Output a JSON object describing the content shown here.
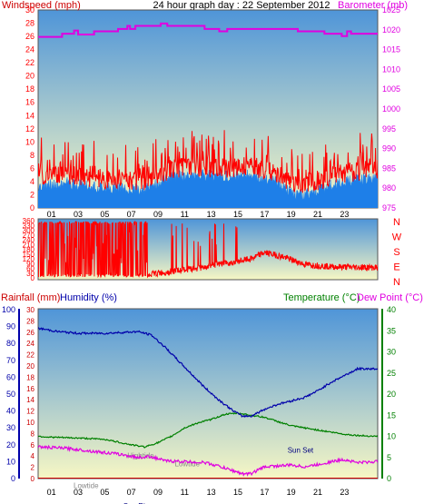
{
  "title": "24 hour graph day : 22 September 2012",
  "colors": {
    "wind": "#ff0000",
    "gust_fill": "#1e7fe8",
    "barometer": "#e000e0",
    "rain": "#cc0000",
    "humidity": "#0000aa",
    "temperature": "#008000",
    "dewpoint": "#e000e0",
    "sky_top": "#4f95d8",
    "sky_bottom": "#f7f7c4"
  },
  "chart_data": [
    {
      "type": "line",
      "name": "wind-barometer",
      "y_label_left": "Windspeed (mph)",
      "y_label_right": "Barometer (mb)",
      "x_ticks": [
        "01",
        "03",
        "05",
        "07",
        "09",
        "11",
        "13",
        "15",
        "17",
        "19",
        "21",
        "23"
      ],
      "ylim_left": [
        0,
        30
      ],
      "y_ticks_left": [
        0,
        2,
        4,
        6,
        8,
        10,
        12,
        14,
        16,
        18,
        20,
        22,
        24,
        26,
        28,
        30
      ],
      "ylim_right": [
        975,
        1025
      ],
      "y_ticks_right": [
        975,
        980,
        985,
        990,
        995,
        1000,
        1005,
        1010,
        1015,
        1020,
        1025
      ],
      "barometer_steps": [
        {
          "x": 0,
          "y": 1018.2
        },
        {
          "x": 1.8,
          "y": 1019.0
        },
        {
          "x": 2.7,
          "y": 1019.8
        },
        {
          "x": 3.0,
          "y": 1018.8
        },
        {
          "x": 4.2,
          "y": 1019.6
        },
        {
          "x": 6.0,
          "y": 1020.2
        },
        {
          "x": 6.7,
          "y": 1021.0
        },
        {
          "x": 6.9,
          "y": 1020.2
        },
        {
          "x": 7.3,
          "y": 1021.0
        },
        {
          "x": 9.2,
          "y": 1021.6
        },
        {
          "x": 9.7,
          "y": 1021.0
        },
        {
          "x": 12.5,
          "y": 1020.2
        },
        {
          "x": 13.6,
          "y": 1019.6
        },
        {
          "x": 14.2,
          "y": 1020.2
        },
        {
          "x": 19.5,
          "y": 1019.6
        },
        {
          "x": 21.5,
          "y": 1019.0
        },
        {
          "x": 22.8,
          "y": 1018.4
        },
        {
          "x": 23.2,
          "y": 1019.6
        },
        {
          "x": 23.5,
          "y": 1019.0
        },
        {
          "x": 25.5,
          "y": 1019.0
        }
      ],
      "wind_profile": [
        {
          "x": 0,
          "y": 4.5
        },
        {
          "x": 2,
          "y": 5
        },
        {
          "x": 4,
          "y": 4.5
        },
        {
          "x": 6,
          "y": 4.2
        },
        {
          "x": 8,
          "y": 4
        },
        {
          "x": 10,
          "y": 6
        },
        {
          "x": 12,
          "y": 6.2
        },
        {
          "x": 14,
          "y": 6
        },
        {
          "x": 16,
          "y": 6.3
        },
        {
          "x": 18,
          "y": 5.2
        },
        {
          "x": 19,
          "y": 3.5
        },
        {
          "x": 20,
          "y": 3.2
        },
        {
          "x": 22,
          "y": 4.8
        },
        {
          "x": 24,
          "y": 5.5
        },
        {
          "x": 25.5,
          "y": 5.8
        }
      ]
    },
    {
      "type": "line",
      "name": "wind-direction",
      "y_label_right": [
        "N",
        "W",
        "S",
        "E",
        "N"
      ],
      "ylim": [
        0,
        360
      ],
      "y_ticks": [
        0,
        30,
        60,
        90,
        120,
        150,
        180,
        210,
        240,
        270,
        300,
        330,
        360
      ],
      "direction_profile": [
        {
          "x": 8.5,
          "y": 25
        },
        {
          "x": 10,
          "y": 40
        },
        {
          "x": 12,
          "y": 60
        },
        {
          "x": 14,
          "y": 90
        },
        {
          "x": 16,
          "y": 120
        },
        {
          "x": 17,
          "y": 160
        },
        {
          "x": 18.5,
          "y": 130
        },
        {
          "x": 20,
          "y": 85
        },
        {
          "x": 22,
          "y": 70
        },
        {
          "x": 25.5,
          "y": 65
        }
      ]
    },
    {
      "type": "line",
      "name": "rain-humidity-temperature",
      "y_label_left_1": "Rainfall (mm)",
      "y_label_left_2": "Humidity (%)",
      "y_label_right_1": "Temperature (°C)",
      "y_label_right_2": "Dew Point (°C)",
      "ylim_humidity": [
        0,
        100
      ],
      "y_ticks_humidity": [
        0,
        10,
        20,
        30,
        40,
        50,
        60,
        70,
        80,
        90,
        100
      ],
      "ylim_rain": [
        0,
        30
      ],
      "y_ticks_rain": [
        0,
        2,
        4,
        6,
        8,
        10,
        12,
        14,
        16,
        18,
        20,
        22,
        24,
        26,
        28,
        30
      ],
      "ylim_temp": [
        0,
        40
      ],
      "y_ticks_temp": [
        0,
        5,
        10,
        15,
        20,
        25,
        30,
        35,
        40
      ],
      "annotations": [
        {
          "text": "Lowtide",
          "x": 3.6,
          "y": -1.6
        },
        {
          "text": "Hightide",
          "x": 7.7,
          "y": 5.5
        },
        {
          "text": "Lowtide",
          "x": 11.2,
          "y": 3.5
        },
        {
          "text": "Sun Set",
          "x": 19.7,
          "y": 6.8
        },
        {
          "text": "Sun Rise",
          "x": 7.5,
          "y": -6.5
        }
      ],
      "humidity": [
        {
          "x": 0,
          "y": 89
        },
        {
          "x": 1.5,
          "y": 87
        },
        {
          "x": 3,
          "y": 86
        },
        {
          "x": 5,
          "y": 86
        },
        {
          "x": 7.5,
          "y": 87
        },
        {
          "x": 8.5,
          "y": 85
        },
        {
          "x": 9.5,
          "y": 78
        },
        {
          "x": 10.5,
          "y": 70
        },
        {
          "x": 11.5,
          "y": 62
        },
        {
          "x": 12.5,
          "y": 54
        },
        {
          "x": 13.5,
          "y": 47
        },
        {
          "x": 14.5,
          "y": 41
        },
        {
          "x": 15.3,
          "y": 37
        },
        {
          "x": 16,
          "y": 37
        },
        {
          "x": 17,
          "y": 41
        },
        {
          "x": 18,
          "y": 44
        },
        {
          "x": 19,
          "y": 46
        },
        {
          "x": 20,
          "y": 48
        },
        {
          "x": 21,
          "y": 52
        },
        {
          "x": 22,
          "y": 57
        },
        {
          "x": 23,
          "y": 61
        },
        {
          "x": 24,
          "y": 65
        },
        {
          "x": 25.5,
          "y": 65
        }
      ],
      "temperature": [
        {
          "x": 0,
          "y": 10
        },
        {
          "x": 1,
          "y": 9.8
        },
        {
          "x": 3,
          "y": 9.6
        },
        {
          "x": 5,
          "y": 9.3
        },
        {
          "x": 7,
          "y": 8
        },
        {
          "x": 8,
          "y": 7.5
        },
        {
          "x": 9,
          "y": 8.5
        },
        {
          "x": 10,
          "y": 10
        },
        {
          "x": 11,
          "y": 12
        },
        {
          "x": 12,
          "y": 13.2
        },
        {
          "x": 13,
          "y": 14
        },
        {
          "x": 14,
          "y": 15.2
        },
        {
          "x": 15,
          "y": 15.5
        },
        {
          "x": 16,
          "y": 15
        },
        {
          "x": 17,
          "y": 14.5
        },
        {
          "x": 18,
          "y": 13.5
        },
        {
          "x": 19,
          "y": 12.5
        },
        {
          "x": 20,
          "y": 12
        },
        {
          "x": 21,
          "y": 11.5
        },
        {
          "x": 22,
          "y": 11
        },
        {
          "x": 23,
          "y": 10.5
        },
        {
          "x": 24,
          "y": 10.2
        },
        {
          "x": 25.5,
          "y": 10
        }
      ],
      "dewpoint": [
        {
          "x": 0,
          "y": 7.5
        },
        {
          "x": 2,
          "y": 7.2
        },
        {
          "x": 4,
          "y": 6.5
        },
        {
          "x": 6,
          "y": 5.8
        },
        {
          "x": 7.5,
          "y": 5
        },
        {
          "x": 8.5,
          "y": 5.2
        },
        {
          "x": 9.5,
          "y": 4.2
        },
        {
          "x": 11,
          "y": 4
        },
        {
          "x": 12.5,
          "y": 3.8
        },
        {
          "x": 13.5,
          "y": 3
        },
        {
          "x": 14.5,
          "y": 2
        },
        {
          "x": 15.5,
          "y": 1
        },
        {
          "x": 16,
          "y": 1.2
        },
        {
          "x": 17,
          "y": 2.8
        },
        {
          "x": 18,
          "y": 3
        },
        {
          "x": 19,
          "y": 3.2
        },
        {
          "x": 20,
          "y": 2.8
        },
        {
          "x": 21,
          "y": 3.3
        },
        {
          "x": 22,
          "y": 4
        },
        {
          "x": 23,
          "y": 4.5
        },
        {
          "x": 24,
          "y": 3.8
        },
        {
          "x": 25.5,
          "y": 4
        }
      ],
      "rainfall": [
        {
          "x": 0,
          "y": 0
        },
        {
          "x": 25.5,
          "y": 0
        }
      ]
    }
  ]
}
